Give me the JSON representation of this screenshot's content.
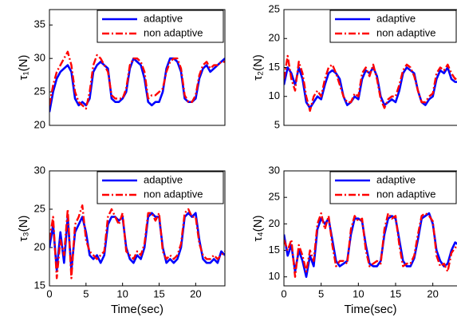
{
  "chart_data": [
    {
      "type": "line",
      "ylabel": "τ₁(N)",
      "legend": "upper right",
      "xlim": [
        0,
        24
      ],
      "ylim": [
        20,
        37.3
      ],
      "yticks": [
        20,
        25,
        30,
        35
      ],
      "x": [
        0,
        0.5,
        1,
        1.5,
        2,
        2.5,
        3,
        3.5,
        4,
        4.5,
        5,
        5.5,
        6,
        6.5,
        7,
        7.5,
        8,
        8.5,
        9,
        9.5,
        10,
        10.5,
        11,
        11.5,
        12,
        12.5,
        13,
        13.5,
        14,
        14.5,
        15,
        15.5,
        16,
        16.5,
        17,
        17.5,
        18,
        18.5,
        19,
        19.5,
        20,
        20.5,
        21,
        21.5,
        22,
        22.5,
        23,
        23.5,
        24
      ],
      "series": [
        {
          "name": "adaptive",
          "color": "#0000ff",
          "linestyle": "solid",
          "values": [
            22,
            25,
            27,
            28,
            28.5,
            29,
            28,
            24,
            23,
            23.5,
            23,
            24,
            28,
            29,
            29.5,
            29,
            28.5,
            24,
            23.5,
            23.5,
            24,
            25,
            28.5,
            30,
            29.5,
            29,
            27,
            23.5,
            23,
            23.5,
            23.5,
            25,
            28.5,
            30,
            30,
            29.5,
            28,
            24,
            23.5,
            23.5,
            24,
            27,
            28.5,
            29,
            28,
            28.5,
            29,
            29.5,
            30
          ]
        },
        {
          "name": "non adaptive",
          "color": "#ff0000",
          "linestyle": "dashdot",
          "values": [
            23,
            26,
            28,
            29,
            30,
            31,
            29,
            25,
            23.5,
            23,
            22.5,
            25,
            29,
            30.5,
            30,
            29,
            28,
            24.5,
            24,
            24,
            24,
            25.5,
            29,
            30,
            30,
            29.5,
            28,
            24,
            24.5,
            24.5,
            25,
            25.5,
            28,
            29.5,
            30,
            30,
            28.5,
            24.5,
            23.5,
            23.5,
            24.5,
            27.5,
            29,
            29.5,
            28.5,
            29,
            29,
            29.5,
            29.5
          ]
        }
      ]
    },
    {
      "type": "line",
      "ylabel": "τ₂(N)",
      "legend": "upper right",
      "xlim": [
        0,
        24
      ],
      "ylim": [
        5,
        25
      ],
      "yticks": [
        5,
        10,
        15,
        20,
        25
      ],
      "x": [
        0,
        0.5,
        1,
        1.5,
        2,
        2.5,
        3,
        3.5,
        4,
        4.5,
        5,
        5.5,
        6,
        6.5,
        7,
        7.5,
        8,
        8.5,
        9,
        9.5,
        10,
        10.5,
        11,
        11.5,
        12,
        12.5,
        13,
        13.5,
        14,
        14.5,
        15,
        15.5,
        16,
        16.5,
        17,
        17.5,
        18,
        18.5,
        19,
        19.5,
        20,
        20.5,
        21,
        21.5,
        22,
        22.5,
        23,
        23.5,
        24
      ],
      "series": [
        {
          "name": "adaptive",
          "color": "#0000ff",
          "linestyle": "solid",
          "values": [
            12,
            15,
            14,
            12,
            15,
            13,
            9,
            8,
            9,
            10,
            9.5,
            12,
            14,
            14.5,
            14,
            13,
            10,
            8.5,
            9,
            10,
            9.5,
            13,
            14.5,
            14,
            15,
            13.5,
            10,
            8.5,
            9,
            9.5,
            9,
            11,
            14,
            15,
            14.5,
            14,
            11,
            9,
            8.5,
            9.5,
            10,
            13,
            14.5,
            14,
            15,
            13,
            12.5,
            12.5,
            13
          ]
        },
        {
          "name": "non adaptive",
          "color": "#ff0000",
          "linestyle": "dashdot",
          "values": [
            13,
            17,
            13,
            11,
            16,
            14,
            10,
            7.5,
            10,
            11,
            10,
            13,
            15,
            15.5,
            14,
            12,
            10,
            9,
            9,
            10.5,
            10,
            14,
            15,
            13.5,
            15.5,
            13,
            9.5,
            8,
            9.5,
            10,
            10,
            12,
            14.5,
            15.5,
            15,
            13.5,
            11,
            9,
            9,
            10,
            10.5,
            14,
            15,
            14.5,
            15.5,
            14,
            13,
            13.5,
            15
          ]
        }
      ]
    },
    {
      "type": "line",
      "ylabel": "τ₃(N)",
      "xlabel": "Time(sec)",
      "legend": "upper right",
      "xlim": [
        0,
        24
      ],
      "xticks": [
        0,
        5,
        10,
        15,
        20
      ],
      "ylim": [
        15,
        30
      ],
      "yticks": [
        15,
        20,
        25,
        30
      ],
      "x": [
        0,
        0.5,
        1,
        1.5,
        2,
        2.5,
        3,
        3.5,
        4,
        4.5,
        5,
        5.5,
        6,
        6.5,
        7,
        7.5,
        8,
        8.5,
        9,
        9.5,
        10,
        10.5,
        11,
        11.5,
        12,
        12.5,
        13,
        13.5,
        14,
        14.5,
        15,
        15.5,
        16,
        16.5,
        17,
        17.5,
        18,
        18.5,
        19,
        19.5,
        20,
        20.5,
        21,
        21.5,
        22,
        22.5,
        23,
        23.5,
        24
      ],
      "series": [
        {
          "name": "adaptive",
          "color": "#0000ff",
          "linestyle": "solid",
          "values": [
            20,
            23,
            17,
            22,
            18,
            24,
            17,
            22,
            23,
            24,
            22,
            19,
            18.5,
            19,
            18,
            19,
            23,
            24,
            24,
            23.5,
            24,
            20,
            18.5,
            18,
            19,
            18.5,
            20,
            24,
            24.5,
            24,
            24,
            20,
            18,
            18.5,
            18,
            18.5,
            20,
            24,
            24.5,
            24,
            24.5,
            21,
            18.5,
            18,
            18,
            18.5,
            18,
            19.5,
            19
          ]
        },
        {
          "name": "non adaptive",
          "color": "#ff0000",
          "linestyle": "dashdot",
          "values": [
            21,
            24,
            16,
            21,
            19,
            25,
            16,
            23,
            24,
            25.5,
            21,
            19.5,
            19,
            18.5,
            19,
            19.5,
            24,
            25,
            24,
            23,
            24.5,
            19.5,
            19,
            18.5,
            19.5,
            19,
            20.5,
            24.5,
            24.5,
            23.5,
            24.5,
            19.5,
            18.5,
            19,
            18.5,
            19,
            20.5,
            24.5,
            25,
            24,
            24,
            20.5,
            19,
            18.5,
            18.5,
            19,
            18.5,
            19,
            19.5
          ]
        }
      ]
    },
    {
      "type": "line",
      "ylabel": "τ₄(N)",
      "xlabel": "Time(sec)",
      "legend": "upper right",
      "xlim": [
        0,
        24
      ],
      "xticks": [
        0,
        5,
        10,
        15,
        20
      ],
      "ylim": [
        8.3,
        30
      ],
      "yticks": [
        10,
        15,
        20,
        25,
        30
      ],
      "x": [
        0,
        0.5,
        1,
        1.5,
        2,
        2.5,
        3,
        3.5,
        4,
        4.5,
        5,
        5.5,
        6,
        6.5,
        7,
        7.5,
        8,
        8.5,
        9,
        9.5,
        10,
        10.5,
        11,
        11.5,
        12,
        12.5,
        13,
        13.5,
        14,
        14.5,
        15,
        15.5,
        16,
        16.5,
        17,
        17.5,
        18,
        18.5,
        19,
        19.5,
        20,
        20.5,
        21,
        21.5,
        22,
        22.5,
        23,
        23.5,
        24
      ],
      "series": [
        {
          "name": "adaptive",
          "color": "#0000ff",
          "linestyle": "solid",
          "values": [
            18,
            14,
            16,
            11,
            15,
            13,
            10,
            14,
            12,
            19,
            21,
            20,
            21,
            17,
            13,
            12,
            12.5,
            13,
            18,
            21,
            21,
            20.5,
            16,
            12.5,
            12,
            12,
            13,
            18,
            21,
            21.5,
            21,
            17,
            13,
            12,
            12,
            13.5,
            17,
            21,
            21.5,
            22,
            20,
            15,
            13,
            12,
            12.5,
            15,
            16.5,
            16,
            16.5
          ]
        },
        {
          "name": "non adaptive",
          "color": "#ff0000",
          "linestyle": "dashdot",
          "values": [
            17,
            15,
            17,
            10,
            16,
            14,
            11,
            15,
            13,
            20,
            22,
            19,
            21.5,
            16,
            12,
            13,
            13,
            12.5,
            19,
            21.5,
            20.5,
            21,
            15,
            12,
            12.5,
            13,
            12.5,
            19,
            22,
            21,
            21.5,
            16,
            12,
            12.5,
            12.5,
            14,
            18,
            21.5,
            22,
            21.5,
            20.5,
            14,
            12,
            12.5,
            11,
            14.5,
            15.5,
            16,
            15
          ]
        }
      ]
    }
  ]
}
